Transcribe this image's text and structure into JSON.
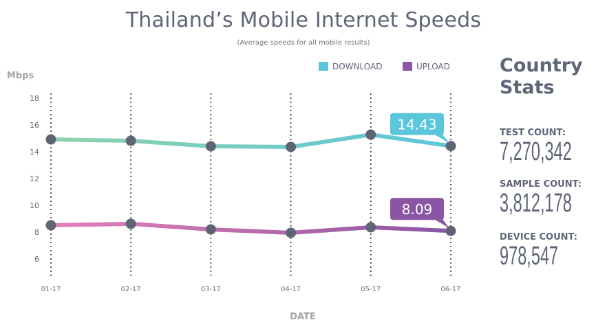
{
  "chart_data": {
    "type": "line",
    "title": "Thailand’s Mobile Internet Speeds",
    "subtitle": "(Average speeds for all mobile results)",
    "ylabel": "Mbps",
    "xlabel": "DATE",
    "categories": [
      "01-17",
      "02-17",
      "03-17",
      "04-17",
      "05-17",
      "06-17"
    ],
    "yticks": [
      18,
      16,
      14,
      12,
      10,
      8,
      6
    ],
    "ylim": [
      5,
      18.3
    ],
    "grid": "vertical dotted",
    "legend": {
      "position": "top-right",
      "entries": [
        "DOWNLOAD",
        "UPLOAD"
      ]
    },
    "series": [
      {
        "name": "DOWNLOAD",
        "values": [
          14.92,
          14.82,
          14.41,
          14.36,
          15.28,
          14.43
        ],
        "callout": "14.43",
        "colors": [
          "#8fd2ad",
          "#5bc6da"
        ]
      },
      {
        "name": "UPLOAD",
        "values": [
          8.51,
          8.62,
          8.2,
          7.95,
          8.36,
          8.09
        ],
        "callout": "8.09",
        "colors": [
          "#e680b9",
          "#8a55a3"
        ]
      }
    ],
    "point_color": "#5f6475"
  },
  "stats": {
    "heading_line1": "Country",
    "heading_line2": "Stats",
    "items": [
      {
        "label": "TEST COUNT:",
        "value": "7,270,342"
      },
      {
        "label": "SAMPLE COUNT:",
        "value": "3,812,178"
      },
      {
        "label": "DEVICE COUNT:",
        "value": "978,547"
      }
    ]
  }
}
